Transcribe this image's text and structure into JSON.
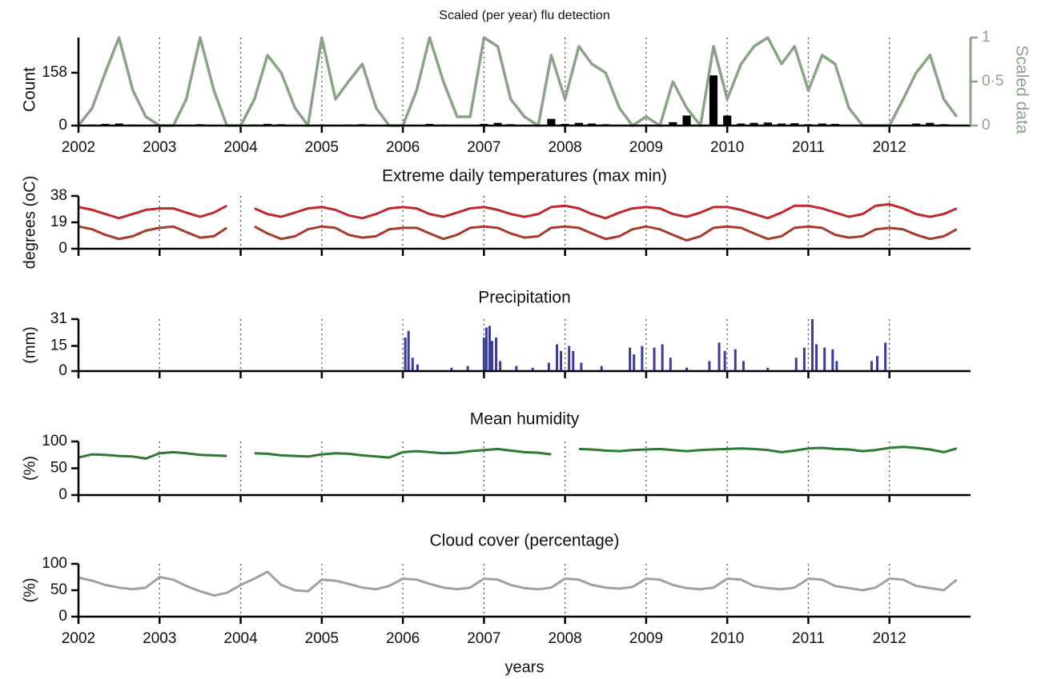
{
  "chart_data": [
    {
      "type": "bar-line",
      "title": "Scaled (per year) flu detection",
      "ylabel": "Count",
      "y2label": "Scaled data",
      "x": [
        2002,
        2002.17,
        2002.33,
        2002.5,
        2002.67,
        2002.83,
        2003,
        2003.17,
        2003.33,
        2003.5,
        2003.67,
        2003.83,
        2004,
        2004.17,
        2004.33,
        2004.5,
        2004.67,
        2004.83,
        2005,
        2005.17,
        2005.33,
        2005.5,
        2005.67,
        2005.83,
        2006,
        2006.17,
        2006.33,
        2006.5,
        2006.67,
        2006.83,
        2007,
        2007.17,
        2007.33,
        2007.5,
        2007.67,
        2007.83,
        2008,
        2008.17,
        2008.33,
        2008.5,
        2008.67,
        2008.83,
        2009,
        2009.17,
        2009.33,
        2009.5,
        2009.67,
        2009.83,
        2010,
        2010.17,
        2010.33,
        2010.5,
        2010.67,
        2010.83,
        2011,
        2011.17,
        2011.33,
        2011.5,
        2011.67,
        2011.83,
        2012,
        2012.17,
        2012.33,
        2012.5,
        2012.67,
        2012.83
      ],
      "series": [
        {
          "name": "Count",
          "color": "#000000",
          "values": [
            2,
            3,
            5,
            6,
            3,
            1,
            0,
            0,
            2,
            4,
            2,
            0,
            0,
            3,
            5,
            4,
            2,
            0,
            3,
            2,
            3,
            4,
            2,
            0,
            0,
            2,
            5,
            3,
            1,
            1,
            5,
            8,
            4,
            2,
            1,
            20,
            5,
            8,
            6,
            4,
            2,
            0,
            1,
            0,
            10,
            30,
            2,
            150,
            30,
            6,
            8,
            9,
            6,
            7,
            4,
            6,
            5,
            2,
            1,
            0,
            0,
            3,
            6,
            8,
            4,
            1
          ]
        },
        {
          "name": "Scaled data",
          "color": "#8aa585",
          "axis": "y2",
          "values": [
            0,
            0.2,
            0.6,
            1,
            0.4,
            0.1,
            0,
            0,
            0.3,
            1,
            0.4,
            0,
            0,
            0.3,
            0.8,
            0.6,
            0.2,
            0,
            1,
            0.3,
            0.5,
            0.7,
            0.2,
            0,
            0,
            0.4,
            1,
            0.5,
            0.1,
            0.1,
            1,
            0.9,
            0.3,
            0.1,
            0,
            0.8,
            0.3,
            0.9,
            0.7,
            0.6,
            0.2,
            0,
            0.1,
            0,
            0.5,
            0.2,
            0,
            0.9,
            0.3,
            0.7,
            0.9,
            1,
            0.7,
            0.9,
            0.4,
            0.8,
            0.7,
            0.2,
            0,
            0,
            0,
            0.3,
            0.6,
            0.8,
            0.3,
            0.1
          ]
        }
      ],
      "xlim": [
        2002,
        2013
      ],
      "xticks": [
        2002,
        2003,
        2004,
        2005,
        2006,
        2007,
        2008,
        2009,
        2010,
        2011,
        2012
      ],
      "xtick_labels": true,
      "ylim": [
        0,
        263
      ],
      "yticks": [
        0,
        158
      ],
      "y2lim": [
        0,
        1
      ],
      "y2ticks": [
        0,
        {
          "value": 0.5,
          "label": "0·5"
        },
        1
      ],
      "grid": true
    },
    {
      "type": "line",
      "title": "Extreme daily temperatures (max min)",
      "ylabel": "degrees (oC)",
      "x": [
        2002,
        2002.17,
        2002.33,
        2002.5,
        2002.67,
        2002.83,
        2003,
        2003.17,
        2003.33,
        2003.5,
        2003.67,
        2003.83,
        2004,
        2004.17,
        2004.33,
        2004.5,
        2004.67,
        2004.83,
        2005,
        2005.17,
        2005.33,
        2005.5,
        2005.67,
        2005.83,
        2006,
        2006.17,
        2006.33,
        2006.5,
        2006.67,
        2006.83,
        2007,
        2007.17,
        2007.33,
        2007.5,
        2007.67,
        2007.83,
        2008,
        2008.17,
        2008.33,
        2008.5,
        2008.67,
        2008.83,
        2009,
        2009.17,
        2009.33,
        2009.5,
        2009.67,
        2009.83,
        2010,
        2010.17,
        2010.33,
        2010.5,
        2010.67,
        2010.83,
        2011,
        2011.17,
        2011.33,
        2011.5,
        2011.67,
        2011.83,
        2012,
        2012.17,
        2012.33,
        2012.5,
        2012.67,
        2012.83
      ],
      "series": [
        {
          "name": "max",
          "color": "#c0282b",
          "values": [
            30,
            28,
            25,
            22,
            25,
            28,
            29,
            29,
            26,
            23,
            26,
            31,
            null,
            29,
            25,
            23,
            26,
            29,
            30,
            28,
            24,
            22,
            25,
            29,
            30,
            29,
            25,
            23,
            26,
            29,
            30,
            28,
            25,
            23,
            25,
            30,
            31,
            29,
            25,
            22,
            26,
            29,
            30,
            29,
            25,
            23,
            26,
            30,
            30,
            28,
            25,
            22,
            26,
            31,
            31,
            29,
            26,
            23,
            25,
            31,
            32,
            29,
            25,
            23,
            25,
            29
          ]
        },
        {
          "name": "min",
          "color": "#a83a2a",
          "values": [
            16,
            14,
            10,
            7,
            9,
            13,
            15,
            16,
            12,
            8,
            9,
            15,
            null,
            16,
            11,
            7,
            9,
            14,
            16,
            15,
            10,
            8,
            9,
            14,
            15,
            15,
            11,
            7,
            10,
            15,
            16,
            15,
            11,
            8,
            9,
            15,
            16,
            15,
            11,
            7,
            9,
            14,
            16,
            14,
            10,
            6,
            9,
            15,
            16,
            15,
            11,
            7,
            9,
            15,
            16,
            15,
            10,
            8,
            9,
            14,
            15,
            14,
            10,
            7,
            9,
            14
          ]
        }
      ],
      "xlim": [
        2002,
        2013
      ],
      "xticks": [
        2002,
        2003,
        2004,
        2005,
        2006,
        2007,
        2008,
        2009,
        2010,
        2011,
        2012
      ],
      "xtick_labels": false,
      "ylim": [
        0,
        38
      ],
      "yticks": [
        0,
        19,
        38
      ],
      "grid": true
    },
    {
      "type": "bar",
      "title": "Precipitation",
      "ylabel": "(mm)",
      "x": [
        2006.03,
        2006.07,
        2006.12,
        2006.18,
        2006.6,
        2006.8,
        2007,
        2007.03,
        2007.07,
        2007.1,
        2007.15,
        2007.2,
        2007.4,
        2007.6,
        2007.8,
        2007.9,
        2007.95,
        2008.05,
        2008.1,
        2008.2,
        2008.45,
        2008.8,
        2008.85,
        2008.95,
        2009.1,
        2009.2,
        2009.3,
        2009.5,
        2009.78,
        2009.9,
        2009.97,
        2010.1,
        2010.2,
        2010.5,
        2010.85,
        2010.95,
        2011.05,
        2011.1,
        2011.2,
        2011.3,
        2011.35,
        2011.78,
        2011.85,
        2011.95
      ],
      "values": [
        20,
        24,
        8,
        4,
        2,
        3,
        20,
        26,
        27,
        18,
        20,
        6,
        3,
        2,
        5,
        16,
        12,
        15,
        12,
        5,
        3,
        14,
        10,
        15,
        14,
        16,
        8,
        2,
        6,
        17,
        12,
        13,
        6,
        2,
        8,
        14,
        31,
        16,
        14,
        13,
        6,
        6,
        9,
        17
      ],
      "color": "#3b3b9a",
      "xlim": [
        2002,
        2013
      ],
      "xticks": [
        2002,
        2003,
        2004,
        2005,
        2006,
        2007,
        2008,
        2009,
        2010,
        2011,
        2012
      ],
      "xtick_labels": false,
      "ylim": [
        0,
        31
      ],
      "yticks": [
        0,
        15,
        31
      ],
      "grid": true
    },
    {
      "type": "line",
      "title": "Mean humidity",
      "ylabel": "(%)",
      "x": [
        2002,
        2002.17,
        2002.33,
        2002.5,
        2002.67,
        2002.83,
        2003,
        2003.17,
        2003.33,
        2003.5,
        2003.67,
        2003.83,
        2004,
        2004.17,
        2004.33,
        2004.5,
        2004.67,
        2004.83,
        2005,
        2005.17,
        2005.33,
        2005.5,
        2005.67,
        2005.83,
        2006,
        2006.17,
        2006.33,
        2006.5,
        2006.67,
        2006.83,
        2007,
        2007.17,
        2007.33,
        2007.5,
        2007.67,
        2007.83,
        2008,
        2008.17,
        2008.33,
        2008.5,
        2008.67,
        2008.83,
        2009,
        2009.17,
        2009.33,
        2009.5,
        2009.67,
        2009.83,
        2010,
        2010.17,
        2010.33,
        2010.5,
        2010.67,
        2010.83,
        2011,
        2011.17,
        2011.33,
        2011.5,
        2011.67,
        2011.83,
        2012,
        2012.17,
        2012.33,
        2012.5,
        2012.67,
        2012.83
      ],
      "series": [
        {
          "name": "humidity",
          "color": "#2d7a35",
          "values": [
            70,
            76,
            75,
            73,
            72,
            68,
            78,
            80,
            78,
            75,
            74,
            73,
            null,
            78,
            77,
            74,
            73,
            72,
            76,
            78,
            77,
            74,
            72,
            70,
            80,
            82,
            80,
            78,
            79,
            82,
            84,
            86,
            83,
            80,
            79,
            76,
            null,
            86,
            85,
            83,
            82,
            84,
            85,
            86,
            84,
            82,
            84,
            85,
            86,
            87,
            86,
            84,
            80,
            83,
            87,
            88,
            86,
            85,
            82,
            84,
            88,
            90,
            88,
            85,
            80,
            87
          ]
        }
      ],
      "xlim": [
        2002,
        2013
      ],
      "xticks": [
        2002,
        2003,
        2004,
        2005,
        2006,
        2007,
        2008,
        2009,
        2010,
        2011,
        2012
      ],
      "xtick_labels": false,
      "ylim": [
        0,
        100
      ],
      "yticks": [
        0,
        50,
        100
      ],
      "grid": true
    },
    {
      "type": "line",
      "title": "Cloud cover (percentage)",
      "ylabel": "(%)",
      "xlabel": "years",
      "x": [
        2002,
        2002.17,
        2002.33,
        2002.5,
        2002.67,
        2002.83,
        2003,
        2003.17,
        2003.33,
        2003.5,
        2003.67,
        2003.83,
        2004,
        2004.17,
        2004.33,
        2004.5,
        2004.67,
        2004.83,
        2005,
        2005.17,
        2005.33,
        2005.5,
        2005.67,
        2005.83,
        2006,
        2006.17,
        2006.33,
        2006.5,
        2006.67,
        2006.83,
        2007,
        2007.17,
        2007.33,
        2007.5,
        2007.67,
        2007.83,
        2008,
        2008.17,
        2008.33,
        2008.5,
        2008.67,
        2008.83,
        2009,
        2009.17,
        2009.33,
        2009.5,
        2009.67,
        2009.83,
        2010,
        2010.17,
        2010.33,
        2010.5,
        2010.67,
        2010.83,
        2011,
        2011.17,
        2011.33,
        2011.5,
        2011.67,
        2011.83,
        2012,
        2012.17,
        2012.33,
        2012.5,
        2012.67,
        2012.83
      ],
      "series": [
        {
          "name": "cloud",
          "color": "#a0a0a0",
          "values": [
            74,
            68,
            60,
            55,
            52,
            55,
            75,
            70,
            58,
            48,
            40,
            45,
            60,
            72,
            85,
            60,
            50,
            48,
            70,
            68,
            62,
            55,
            52,
            58,
            72,
            70,
            62,
            55,
            52,
            55,
            72,
            70,
            60,
            54,
            52,
            55,
            72,
            70,
            60,
            55,
            53,
            56,
            72,
            70,
            60,
            54,
            52,
            55,
            72,
            70,
            58,
            54,
            52,
            55,
            72,
            70,
            58,
            54,
            50,
            55,
            72,
            70,
            58,
            54,
            50,
            70
          ]
        }
      ],
      "xlim": [
        2002,
        2013
      ],
      "xticks": [
        2002,
        2003,
        2004,
        2005,
        2006,
        2007,
        2008,
        2009,
        2010,
        2011,
        2012
      ],
      "xtick_labels": true,
      "ylim": [
        0,
        100
      ],
      "yticks": [
        0,
        50,
        100
      ],
      "grid": true
    }
  ]
}
